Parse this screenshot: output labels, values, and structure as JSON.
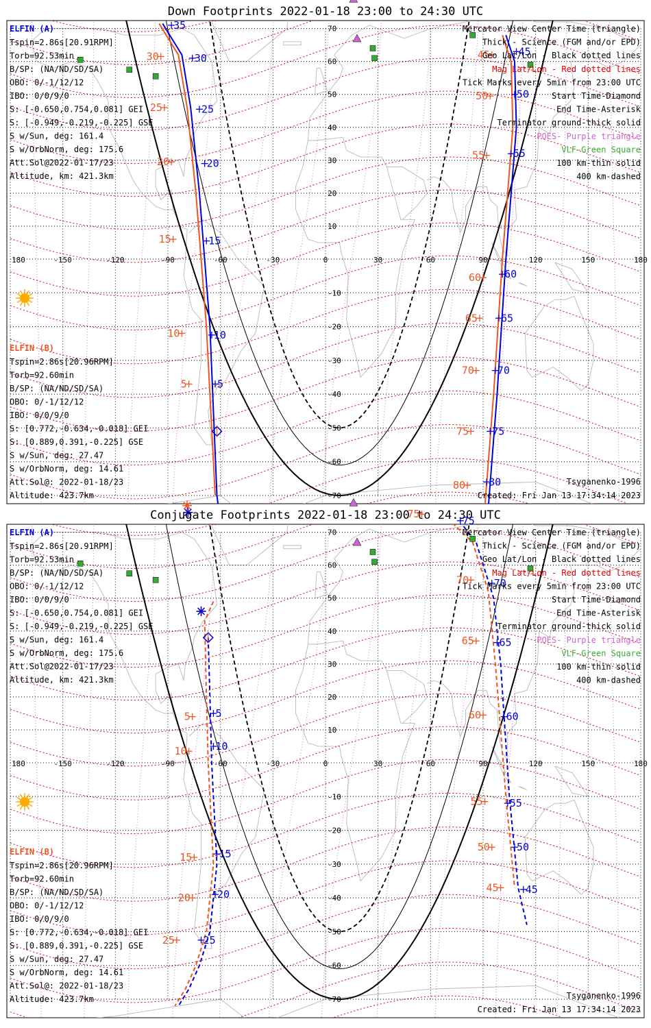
{
  "colors": {
    "elfin_a": "#0000dd",
    "elfin_b": "#ee5522",
    "mag_grid": "#dd0000",
    "geo_grid": "#000000",
    "terminator": "#000000",
    "coast": "#b8b8b8",
    "poes": "#cc66cc",
    "vlf": "#33aa33",
    "sun": "#ffaa00",
    "meridian": "#dd66dd"
  },
  "axis": {
    "lon_labels": [
      "180",
      "-150",
      "-120",
      "-90",
      "-60",
      "-30",
      "0",
      "30",
      "60",
      "90",
      "120",
      "150",
      "180"
    ],
    "lat_labels": [
      "70",
      "60",
      "50",
      "40",
      "30",
      "20",
      "10",
      "0",
      "-10",
      "-20",
      "-30",
      "-40",
      "-50",
      "-60",
      "-70"
    ]
  },
  "panels": [
    {
      "title": "Down Footprints 2022-01-18 23:00 to 24:30 UTC",
      "footprint_style": "solid",
      "elfin_a": {
        "header": "ELFIN (A)",
        "lines": [
          "Tspin=2.86s[20.91RPM]",
          "Torb=92.53min",
          "B/SP: (NA/ND/SD/SA)",
          "OBO: 0/-1/12/12",
          "IBO: 0/0/9/0",
          "S: [-0.650,0.754,0.081] GEI",
          "S: [-0.949,-0.219,-0.225] GSE",
          "S w/Sun, deg: 161.4",
          "S w/OrbNorm, deg: 175.6",
          "Att.Sol@2022-01-17/23",
          "Altitude, km: 421.3km"
        ]
      },
      "elfin_b": {
        "header": "ELFIN (B)",
        "lines": [
          "Tspin=2.86s[20.96RPM]",
          "Torb=92.60min",
          "B/SP: (NA/ND/SD/SA)",
          "OBO: 0/-1/12/12",
          "IBO: 0/0/9/0",
          "S: [0.772,-0.634,-0.018] GEI",
          "S: [0.889,0.391,-0.225] GSE",
          "S w/Sun, deg: 27.47",
          "S w/OrbNorm, deg: 14.61",
          "Att.Sol@: 2022-01-18/23",
          "Altitude: 423.7km"
        ]
      },
      "legend": [
        {
          "text": "Mercator View Center Time (triangle)",
          "color": "#000000"
        },
        {
          "text": "Thick - Science (FGM and/or EPD)",
          "color": "#000000"
        },
        {
          "text": "Geo Lat/Lon - Black dotted lines",
          "color": "#000000"
        },
        {
          "text": "Mag Lat/Lon - Red dotted lines",
          "color": "#dd0000"
        },
        {
          "text": "Tick Marks every 5min from 23:00 UTC",
          "color": "#000000"
        },
        {
          "text": "Start Time-Diamond",
          "color": "#000000"
        },
        {
          "text": "End Time-Asterisk",
          "color": "#000000"
        },
        {
          "text": "Terminator ground-thick solid",
          "color": "#000000"
        },
        {
          "text": "POES- Purple triangle",
          "color": "#cc66cc"
        },
        {
          "text": "VLF-Green Square",
          "color": "#33aa33"
        },
        {
          "text": "100 km-thin solid",
          "color": "#000000"
        },
        {
          "text": "400 km-dashed",
          "color": "#000000"
        }
      ],
      "model": "Tsyganenko-1996",
      "created": "Created: Fri Jan 13 17:34:14 2023",
      "track_a1": [
        {
          "lon": -93,
          "lat": 71.5
        },
        {
          "lon": -82,
          "lat": 62
        },
        {
          "lon": -77,
          "lat": 46
        },
        {
          "lon": -72,
          "lat": 20
        },
        {
          "lon": -66,
          "lat": -20
        },
        {
          "lon": -62,
          "lat": -70
        },
        {
          "lon": -59,
          "lat": -82
        }
      ],
      "track_b1": [
        {
          "lon": -95,
          "lat": 71.5
        },
        {
          "lon": -84,
          "lat": 62
        },
        {
          "lon": -79,
          "lat": 46
        },
        {
          "lon": -74,
          "lat": 20
        },
        {
          "lon": -68,
          "lat": -20
        },
        {
          "lon": -63,
          "lat": -70
        }
      ],
      "track_a2": [
        {
          "lon": 103,
          "lat": 68
        },
        {
          "lon": 108,
          "lat": 60
        },
        {
          "lon": 109,
          "lat": 40
        },
        {
          "lon": 103,
          "lat": 0
        },
        {
          "lon": 98,
          "lat": -40
        },
        {
          "lon": 92,
          "lat": -80
        }
      ],
      "track_b2": [
        {
          "lon": 101,
          "lat": 68
        },
        {
          "lon": 106,
          "lat": 60
        },
        {
          "lon": 107,
          "lat": 40
        },
        {
          "lon": 101,
          "lat": 0
        },
        {
          "lon": 96,
          "lat": -40
        },
        {
          "lon": 90,
          "lat": -80
        }
      ],
      "track_b3": [
        {
          "lon": -79,
          "lat": -74
        },
        {
          "lon": -74,
          "lat": -84
        }
      ],
      "start_marker": {
        "lon": -62,
        "lat": -51
      },
      "end_marker_a": {
        "lon": -78.5,
        "lat": -75
      },
      "end_marker_b": {
        "lon": -79,
        "lat": -73
      },
      "ticks_a": [
        {
          "label": "35",
          "lon": -88,
          "lat": 71
        },
        {
          "label": "30",
          "lon": -76,
          "lat": 61
        },
        {
          "label": "25",
          "lon": -72,
          "lat": 45.5
        },
        {
          "label": "20",
          "lon": -69,
          "lat": 29
        },
        {
          "label": "15",
          "lon": -68,
          "lat": 5.5
        },
        {
          "label": "10",
          "lon": -65,
          "lat": -22.5
        },
        {
          "label": "5",
          "lon": -63,
          "lat": -37
        },
        {
          "label": "45",
          "lon": 109,
          "lat": 63
        },
        {
          "label": "50",
          "lon": 108,
          "lat": 50
        },
        {
          "label": "55",
          "lon": 106,
          "lat": 32
        },
        {
          "label": "60",
          "lon": 101,
          "lat": -4.5
        },
        {
          "label": "65",
          "lon": 99,
          "lat": -17.5
        },
        {
          "label": "70",
          "lon": 97,
          "lat": -33
        },
        {
          "label": "75",
          "lon": 94,
          "lat": -51
        },
        {
          "label": "80",
          "lon": 92,
          "lat": -66
        }
      ],
      "ticks_b": [
        {
          "label": "30",
          "lon": -94,
          "lat": 61.5
        },
        {
          "label": "25",
          "lon": -92,
          "lat": 46
        },
        {
          "label": "20",
          "lon": -88,
          "lat": 29.5
        },
        {
          "label": "15",
          "lon": -87,
          "lat": 6
        },
        {
          "label": "10",
          "lon": -82,
          "lat": -22
        },
        {
          "label": "5",
          "lon": -78,
          "lat": -37
        },
        {
          "label": "45",
          "lon": 95,
          "lat": 62
        },
        {
          "label": "50",
          "lon": 94,
          "lat": 49.5
        },
        {
          "label": "55",
          "lon": 92,
          "lat": 31.5
        },
        {
          "label": "60",
          "lon": 90,
          "lat": -5.5
        },
        {
          "label": "65",
          "lon": 88,
          "lat": -17.5
        },
        {
          "label": "70",
          "lon": 86,
          "lat": -33
        },
        {
          "label": "75",
          "lon": 83,
          "lat": -51
        },
        {
          "label": "80",
          "lon": 81,
          "lat": -67
        }
      ]
    },
    {
      "title": "Conjugate Footprints 2022-01-18 23:00 to 24:30 UTC",
      "footprint_style": "dashed",
      "elfin_a": {
        "header": "ELFIN (A)",
        "lines": [
          "Tspin=2.86s[20.91RPM]",
          "Torb=92.53min",
          "B/SP: (NA/ND/SD/SA)",
          "OBO: 0/-1/12/12",
          "IBO: 0/0/9/0",
          "S: [-0.650,0.754,0.081] GEI",
          "S: [-0.949,-0.219,-0.225] GSE",
          "S w/Sun, deg: 161.4",
          "S w/OrbNorm, deg: 175.6",
          "Att.Sol@2022-01-17/23",
          "Altitude, km: 421.3km"
        ]
      },
      "elfin_b": {
        "header": "ELFIN (B)",
        "lines": [
          "Tspin=2.86s[20.96RPM]",
          "Torb=92.60min",
          "B/SP: (NA/ND/SD/SA)",
          "OBO: 0/-1/12/12",
          "IBO: 0/0/9/0",
          "S: [0.772,-0.634,-0.018] GEI",
          "S: [0.889,0.391,-0.225] GSE",
          "S w/Sun, deg: 27.47",
          "S w/OrbNorm, deg: 14.61",
          "Att.Sol@: 2022-01-18/23",
          "Altitude: 423.7km"
        ]
      },
      "legend": [
        {
          "text": "Mercator View Center Time (triangle)",
          "color": "#000000"
        },
        {
          "text": "Thick - Science (FGM and/or EPD)",
          "color": "#000000"
        },
        {
          "text": "Geo Lat/Lon - Black dotted lines",
          "color": "#000000"
        },
        {
          "text": "Mag Lat/Lon - Red dotted lines",
          "color": "#dd0000"
        },
        {
          "text": "Tick Marks every 5min from 23:00 UTC",
          "color": "#000000"
        },
        {
          "text": "Start Time-Diamond",
          "color": "#000000"
        },
        {
          "text": "End Time-Asterisk",
          "color": "#000000"
        },
        {
          "text": "Terminator ground-thick solid",
          "color": "#000000"
        },
        {
          "text": "POES- Purple triangle",
          "color": "#cc66cc"
        },
        {
          "text": "VLF-Green Square",
          "color": "#33aa33"
        },
        {
          "text": "100 km-thin solid",
          "color": "#000000"
        },
        {
          "text": "400 km-dashed",
          "color": "#000000"
        }
      ],
      "model": "Tsyganenko-1996",
      "created": "Created: Fri Jan 13 17:34:14 2023",
      "track_a1": [
        {
          "lon": -67,
          "lat": 38
        },
        {
          "lon": -66,
          "lat": 20
        },
        {
          "lon": -65,
          "lat": 0
        },
        {
          "lon": -62,
          "lat": -30
        },
        {
          "lon": -66,
          "lat": -50
        },
        {
          "lon": -72,
          "lat": -60
        },
        {
          "lon": -78,
          "lat": -67
        },
        {
          "lon": -84,
          "lat": -72
        }
      ],
      "track_b1": [
        {
          "lon": -64,
          "lat": 49
        },
        {
          "lon": -69,
          "lat": 43
        },
        {
          "lon": -68,
          "lat": 20
        },
        {
          "lon": -67,
          "lat": 0
        },
        {
          "lon": -64,
          "lat": -30
        },
        {
          "lon": -68,
          "lat": -50
        },
        {
          "lon": -74,
          "lat": -60
        },
        {
          "lon": -80,
          "lat": -67
        },
        {
          "lon": -86,
          "lat": -72
        }
      ],
      "track_a2": [
        {
          "lon": 74,
          "lat": 75
        },
        {
          "lon": 86,
          "lat": 67
        },
        {
          "lon": 96,
          "lat": 50
        },
        {
          "lon": 100,
          "lat": 30
        },
        {
          "lon": 105,
          "lat": -10
        },
        {
          "lon": 110,
          "lat": -37
        },
        {
          "lon": 115,
          "lat": -48
        }
      ],
      "track_b2": [
        {
          "lon": 42,
          "lat": 82
        },
        {
          "lon": 58,
          "lat": 76
        },
        {
          "lon": 72,
          "lat": 73
        },
        {
          "lon": 84,
          "lat": 67
        },
        {
          "lon": 93,
          "lat": 52
        },
        {
          "lon": 97,
          "lat": 30
        },
        {
          "lon": 103,
          "lat": -10
        },
        {
          "lon": 108,
          "lat": -37
        }
      ],
      "track_b3": [],
      "start_marker": {
        "lon": -67,
        "lat": 38
      },
      "end_marker_a": {
        "lon": -71,
        "lat": 46
      },
      "end_marker_b": {
        "lon": -71,
        "lat": 46
      },
      "ticks_a": [
        {
          "label": "5",
          "lon": -64,
          "lat": 15
        },
        {
          "label": "10",
          "lon": -64,
          "lat": 5
        },
        {
          "label": "15",
          "lon": -62,
          "lat": -27
        },
        {
          "label": "20",
          "lon": -63,
          "lat": -39
        },
        {
          "label": "25",
          "lon": -71,
          "lat": -52.5
        },
        {
          "label": "75",
          "lon": 77,
          "lat": 73.5
        },
        {
          "label": "70",
          "lon": 95,
          "lat": 54.5
        },
        {
          "label": "65",
          "lon": 98,
          "lat": 36.5
        },
        {
          "label": "60",
          "lon": 102,
          "lat": 14
        },
        {
          "label": "55",
          "lon": 104,
          "lat": -12
        },
        {
          "label": "50",
          "lon": 108,
          "lat": -25
        },
        {
          "label": "45",
          "lon": 113,
          "lat": -37.5
        }
      ],
      "ticks_b": [
        {
          "label": "5",
          "lon": -76,
          "lat": 14
        },
        {
          "label": "10",
          "lon": -78,
          "lat": 3.5
        },
        {
          "label": "15",
          "lon": -75,
          "lat": -28
        },
        {
          "label": "20",
          "lon": -76,
          "lat": -40
        },
        {
          "label": "25",
          "lon": -85,
          "lat": -52.5
        },
        {
          "label": "75",
          "lon": 55,
          "lat": 75.5
        },
        {
          "label": "70",
          "lon": 83,
          "lat": 55.5
        },
        {
          "label": "65",
          "lon": 86,
          "lat": 37
        },
        {
          "label": "60",
          "lon": 90,
          "lat": 14.5
        },
        {
          "label": "55",
          "lon": 91,
          "lat": -11.5
        },
        {
          "label": "50",
          "lon": 95,
          "lat": -25
        },
        {
          "label": "45",
          "lon": 100,
          "lat": -37
        }
      ]
    }
  ]
}
